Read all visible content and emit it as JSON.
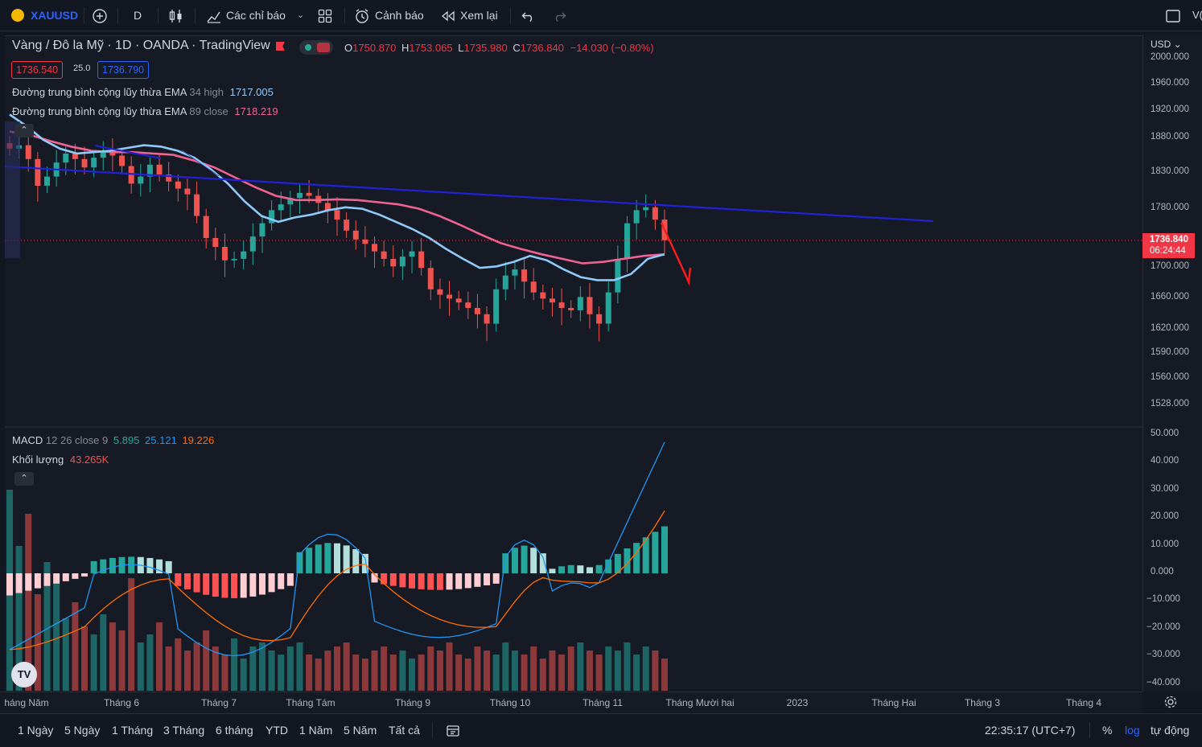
{
  "toolbar": {
    "symbol": "XAUUSD",
    "interval": "D",
    "indicators_label": "Các chỉ báo",
    "alert_label": "Cảnh báo",
    "replay_label": "Xem lại",
    "right_cut_text": "V("
  },
  "legend": {
    "title": "Vàng / Đô la Mỹ · 1D · OANDA · TradingView",
    "ohlc": {
      "o_key": "O",
      "o": "1750.870",
      "h_key": "H",
      "h": "1753.065",
      "l_key": "L",
      "l": "1735.980",
      "c_key": "C",
      "c": "1736.840",
      "change": "−14.030 (−0.80%)"
    },
    "bid": "1736.540",
    "spread": "25.0",
    "ask": "1736.790",
    "ema1_name": "Đường trung bình cộng lũy thừa EMA",
    "ema1_params": "34 high",
    "ema1_value": "1717.005",
    "ema2_name": "Đường trung bình cộng lũy thừa EMA",
    "ema2_params": "89 close",
    "ema2_value": "1718.219",
    "macd_name": "MACD",
    "macd_params": "12 26 close 9",
    "macd_v1": "5.895",
    "macd_v2": "25.121",
    "macd_v3": "19.226",
    "vol_name": "Khối lượng",
    "vol_value": "43.265K"
  },
  "price_axis": {
    "currency": "USD",
    "ticks": [
      "2000.000",
      "1960.000",
      "1920.000",
      "1880.000",
      "1830.000",
      "1780.000",
      "1700.000",
      "1660.000",
      "1620.000",
      "1590.000",
      "1560.000",
      "1528.000"
    ],
    "last_price": "1736.840",
    "countdown": "06:24:44"
  },
  "macd_axis": {
    "ticks": [
      "50.000",
      "40.000",
      "30.000",
      "20.000",
      "10.000",
      "0.000",
      "−10.000",
      "−20.000",
      "−30.000",
      "−40.000"
    ]
  },
  "time_axis": {
    "labels": [
      "háng Năm",
      "Tháng 6",
      "Tháng 7",
      "Tháng Tám",
      "Tháng 9",
      "Tháng 10",
      "Tháng 11",
      "Tháng Mười hai",
      "2023",
      "Tháng Hai",
      "Tháng 3",
      "Tháng 4"
    ]
  },
  "bottombar": {
    "ranges": [
      "1 Ngày",
      "5 Ngày",
      "1 Tháng",
      "3 Tháng",
      "6 tháng",
      "YTD",
      "1 Năm",
      "5 Năm",
      "Tất cả"
    ],
    "clock": "22:35:17 (UTC+7)",
    "percent": "%",
    "log": "log",
    "auto": "tự động"
  },
  "colors": {
    "up": "#26a69a",
    "down": "#ef5350",
    "ema34": "#90caf9",
    "ema89": "#f06292",
    "trendline": "#1e22d8",
    "arrow": "#ff1a1a",
    "macd_line": "#2196f3",
    "signal_line": "#ff6d00",
    "accent_blue": "#2962ff"
  },
  "chart_data": {
    "type": "candlestick",
    "title": "Vàng / Đô la Mỹ · 1D · OANDA · TradingView",
    "ylim": [
      1500,
      2020
    ],
    "y_scale": "log",
    "x_labels": [
      "háng Năm",
      "Tháng 6",
      "Tháng 7",
      "Tháng Tám",
      "Tháng 9",
      "Tháng 10",
      "Tháng 11"
    ],
    "close_path": [
      1865,
      1870,
      1850,
      1812,
      1825,
      1845,
      1858,
      1850,
      1838,
      1852,
      1862,
      1855,
      1840,
      1815,
      1825,
      1842,
      1828,
      1818,
      1808,
      1800,
      1770,
      1740,
      1728,
      1710,
      1712,
      1722,
      1742,
      1760,
      1778,
      1786,
      1795,
      1802,
      1798,
      1788,
      1778,
      1765,
      1750,
      1738,
      1732,
      1722,
      1712,
      1702,
      1715,
      1722,
      1700,
      1672,
      1665,
      1660,
      1655,
      1648,
      1640,
      1628,
      1672,
      1690,
      1698,
      1682,
      1668,
      1660,
      1655,
      1648,
      1645,
      1662,
      1640,
      1628,
      1668,
      1712,
      1760,
      1778,
      1782,
      1765,
      1737
    ],
    "series": [
      {
        "name": "EMA 34 high",
        "values": [
          1915,
          1898,
          1878,
          1865,
          1858,
          1860,
          1862,
          1866,
          1870,
          1868,
          1862,
          1852,
          1835,
          1815,
          1790,
          1770,
          1762,
          1768,
          1772,
          1778,
          1782,
          1780,
          1772,
          1762,
          1752,
          1740,
          1725,
          1712,
          1700,
          1702,
          1708,
          1716,
          1710,
          1698,
          1688,
          1684,
          1684,
          1692,
          1712,
          1718
        ]
      },
      {
        "name": "EMA 89 close",
        "values": [
          1890,
          1885,
          1876,
          1868,
          1862,
          1860,
          1860,
          1858,
          1856,
          1848,
          1838,
          1824,
          1810,
          1798,
          1792,
          1792,
          1793,
          1792,
          1789,
          1786,
          1780,
          1770,
          1758,
          1745,
          1733,
          1725,
          1718,
          1712,
          1706,
          1708,
          1712,
          1716,
          1718
        ]
      },
      {
        "name": "MACD 12 26 close 9",
        "v1": 5.895,
        "v2": 25.121,
        "v3": 19.226
      },
      {
        "name": "Khối lượng",
        "last": "43.265K"
      }
    ]
  }
}
